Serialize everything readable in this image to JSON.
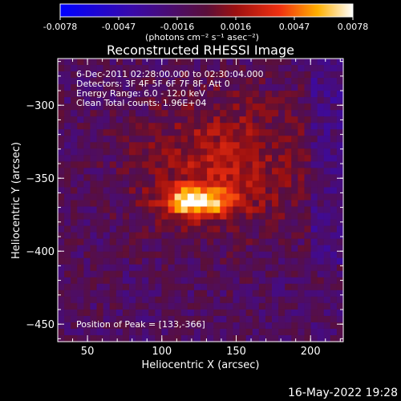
{
  "chart_data": {
    "type": "heatmap",
    "title": "Reconstructed RHESSI Image",
    "xlabel": "Heliocentric X (arcsec)",
    "ylabel": "Heliocentric Y (arcsec)",
    "xlim": [
      30,
      222
    ],
    "ylim": [
      -462,
      -268
    ],
    "xticks": [
      50,
      100,
      150,
      200
    ],
    "yticks": [
      -450,
      -400,
      -350,
      -300
    ],
    "colorbar": {
      "range": [
        -0.0078,
        0.0078
      ],
      "tick_labels": [
        "-0.0078",
        "-0.0047",
        "-0.0016",
        "0.0016",
        "0.0047",
        "0.0078"
      ],
      "unit_label": "(photons cm⁻² s⁻¹ asec⁻²)",
      "colormap": "blue-purple-red-orange-yellow-white"
    },
    "annotations": [
      " 6-Dec-2011 02:28:00.000 to 02:30:04.000",
      "Detectors: 3F 4F 5F 6F 7F 8F, Att 0",
      "Energy Range: 6.0 - 12.0 keV",
      "Clean     Total counts: 1.96E+04"
    ],
    "peak_label": "Position of Peak = [133,-366]",
    "peak": {
      "x": 133,
      "y": -366,
      "value": 0.0078
    },
    "footer_date": "16-May-2022 19:28"
  }
}
